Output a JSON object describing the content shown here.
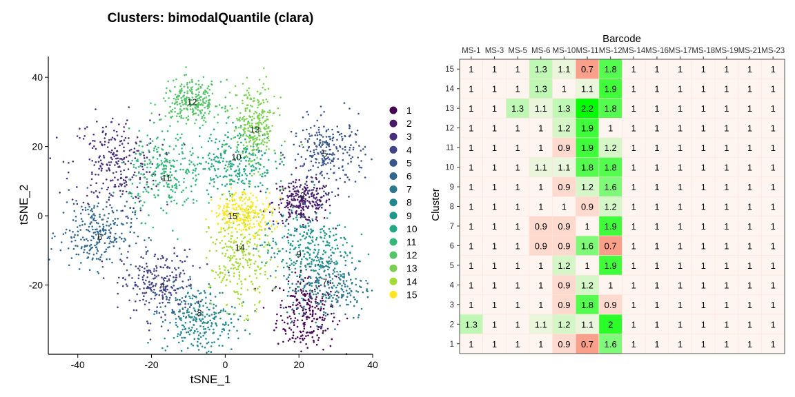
{
  "chart_data": [
    {
      "type": "scatter",
      "title": "Clusters: bimodalQuantile (clara)",
      "xlabel": "tSNE_1",
      "ylabel": "tSNE_2",
      "xlim": [
        -48,
        40
      ],
      "ylim": [
        -40,
        46
      ],
      "xticks": [
        -40,
        -20,
        0,
        20,
        40
      ],
      "yticks": [
        -20,
        0,
        20,
        40
      ],
      "grid": false,
      "legend_position": "right",
      "legend_entries": [
        "1",
        "2",
        "3",
        "4",
        "5",
        "6",
        "7",
        "8",
        "9",
        "10",
        "11",
        "12",
        "13",
        "14",
        "15"
      ],
      "palette": [
        "#440154",
        "#481A6C",
        "#472F7D",
        "#414487",
        "#39568C",
        "#31688E",
        "#2A788E",
        "#23888E",
        "#1F988B",
        "#22A884",
        "#35B779",
        "#54C568",
        "#7AD151",
        "#A5DB36",
        "#FDE725"
      ],
      "clusters": [
        {
          "label": "1",
          "center": [
            22,
            -28
          ],
          "spread": [
            4,
            6
          ],
          "label_pos": null
        },
        {
          "label": "2",
          "center": [
            21,
            4
          ],
          "spread": [
            4,
            3
          ],
          "label_pos": [
            21,
            6
          ]
        },
        {
          "label": "3",
          "center": [
            -30,
            15
          ],
          "spread": [
            6,
            7
          ],
          "label_pos": null
        },
        {
          "label": "4",
          "center": [
            -18,
            -20
          ],
          "spread": [
            5,
            5
          ],
          "label_pos": [
            -17,
            -20
          ]
        },
        {
          "label": "5",
          "center": [
            28,
            18
          ],
          "spread": [
            5,
            5
          ],
          "label_pos": [
            27,
            18
          ]
        },
        {
          "label": "6",
          "center": [
            -35,
            -5
          ],
          "spread": [
            5,
            5
          ],
          "label_pos": [
            -34,
            -6
          ]
        },
        {
          "label": "7",
          "center": [
            28,
            -20
          ],
          "spread": [
            6,
            5
          ],
          "label_pos": [
            27,
            -19
          ]
        },
        {
          "label": "8",
          "center": [
            -7,
            -30
          ],
          "spread": [
            5,
            5
          ],
          "label_pos": [
            -7,
            -28
          ]
        },
        {
          "label": "9",
          "center": [
            22,
            -9
          ],
          "spread": [
            6,
            5
          ],
          "label_pos": [
            20,
            -11
          ]
        },
        {
          "label": "10",
          "center": [
            3,
            16
          ],
          "spread": [
            5,
            5
          ],
          "label_pos": [
            3,
            17
          ]
        },
        {
          "label": "11",
          "center": [
            -16,
            12
          ],
          "spread": [
            5,
            6
          ],
          "label_pos": [
            -16,
            11
          ]
        },
        {
          "label": "12",
          "center": [
            -9,
            33
          ],
          "spread": [
            4,
            3
          ],
          "label_pos": [
            -9,
            33
          ]
        },
        {
          "label": "13",
          "center": [
            8,
            26
          ],
          "spread": [
            3,
            6
          ],
          "label_pos": [
            8,
            25
          ]
        },
        {
          "label": "14",
          "center": [
            4,
            -13
          ],
          "spread": [
            4,
            7
          ],
          "label_pos": [
            4,
            -9
          ]
        },
        {
          "label": "15",
          "center": [
            5,
            1
          ],
          "spread": [
            4,
            3
          ],
          "label_pos": [
            2,
            0
          ]
        }
      ]
    },
    {
      "type": "heatmap",
      "title": "Barcode",
      "xlabel": "Barcode",
      "ylabel": "Cluster",
      "x": [
        "MS-1",
        "MS-3",
        "MS-5",
        "MS-6",
        "MS-10",
        "MS-11",
        "MS-12",
        "MS-14",
        "MS-16",
        "MS-17",
        "MS-18",
        "MS-19",
        "MS-21",
        "MS-23"
      ],
      "y_top_to_bottom": [
        "15",
        "14",
        "13",
        "12",
        "11",
        "10",
        "9",
        "8",
        "7",
        "6",
        "5",
        "4",
        "3",
        "2",
        "1"
      ],
      "values": [
        [
          1,
          1,
          1,
          1.3,
          1.1,
          0.7,
          1.8,
          1,
          1,
          1,
          1,
          1,
          1,
          1
        ],
        [
          1,
          1,
          1,
          1.3,
          1,
          1.1,
          1.9,
          1,
          1,
          1,
          1,
          1,
          1,
          1
        ],
        [
          1,
          1,
          1.3,
          1.1,
          1.3,
          2.2,
          1.8,
          1,
          1,
          1,
          1,
          1,
          1,
          1
        ],
        [
          1,
          1,
          1,
          1,
          1.2,
          1.9,
          1,
          1,
          1,
          1,
          1,
          1,
          1,
          1
        ],
        [
          1,
          1,
          1,
          1,
          0.9,
          1.9,
          1.2,
          1,
          1,
          1,
          1,
          1,
          1,
          1
        ],
        [
          1,
          1,
          1,
          1.1,
          1.1,
          1.8,
          1.8,
          1,
          1,
          1,
          1,
          1,
          1,
          1
        ],
        [
          1,
          1,
          1,
          1,
          0.9,
          1.2,
          1.6,
          1,
          1,
          1,
          1,
          1,
          1,
          1
        ],
        [
          1,
          1,
          1,
          1,
          1,
          0.9,
          1.2,
          1,
          1,
          1,
          1,
          1,
          1,
          1
        ],
        [
          1,
          1,
          1,
          0.9,
          0.9,
          1,
          1.9,
          1,
          1,
          1,
          1,
          1,
          1,
          1
        ],
        [
          1,
          1,
          1,
          0.9,
          0.9,
          1.6,
          0.7,
          1,
          1,
          1,
          1,
          1,
          1,
          1
        ],
        [
          1,
          1,
          1,
          1,
          1.2,
          1,
          1.9,
          1,
          1,
          1,
          1,
          1,
          1,
          1
        ],
        [
          1,
          1,
          1,
          1,
          0.9,
          1.2,
          1,
          1,
          1,
          1,
          1,
          1,
          1,
          1
        ],
        [
          1,
          1,
          1,
          1,
          0.9,
          1.8,
          0.9,
          1,
          1,
          1,
          1,
          1,
          1,
          1
        ],
        [
          1.3,
          1,
          1,
          1.1,
          1.2,
          1.1,
          2,
          1,
          1,
          1,
          1,
          1,
          1,
          1
        ],
        [
          1,
          1,
          1,
          1,
          0.9,
          0.7,
          1.6,
          1,
          1,
          1,
          1,
          1,
          1,
          1
        ]
      ],
      "color_scale": {
        "low": "#FAA08A",
        "mid": "#FFF5F0",
        "high": "#00FF00"
      }
    }
  ]
}
